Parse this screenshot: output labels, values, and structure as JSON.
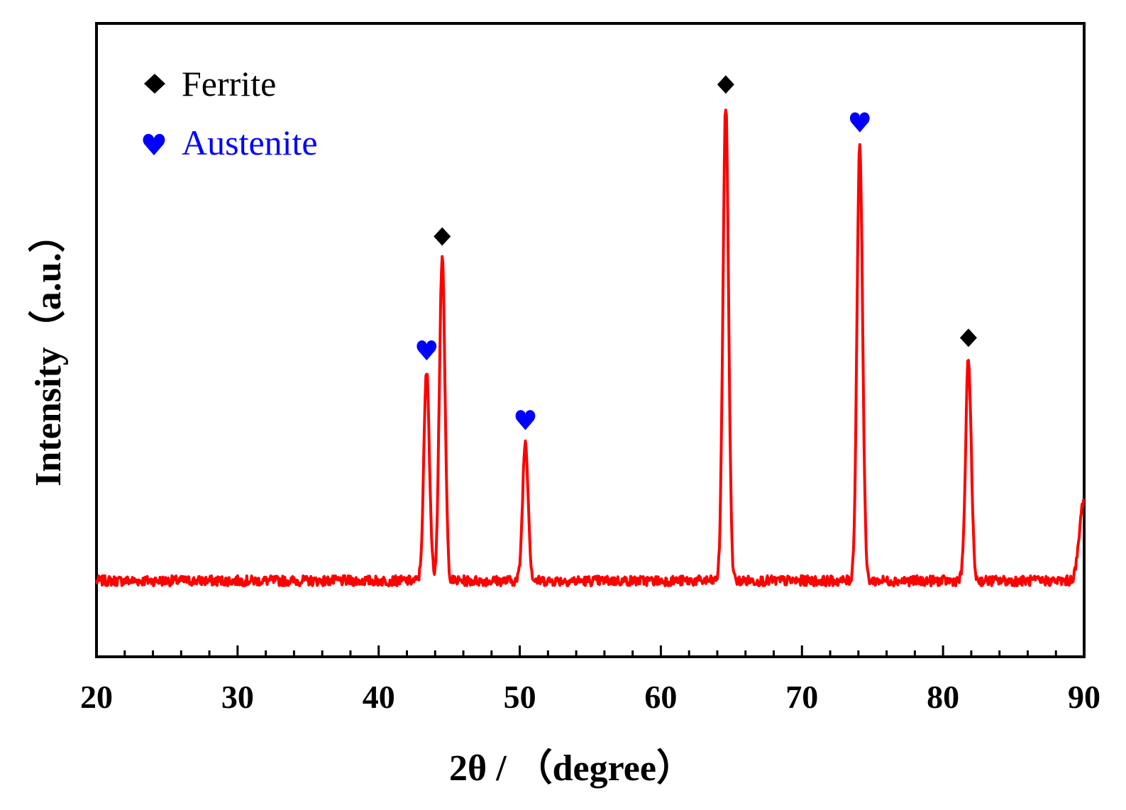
{
  "chart_data": {
    "type": "line",
    "xlabel": "2θ / （degree）",
    "ylabel": "Intensity（a.u.）",
    "xlim": [
      20,
      90
    ],
    "ylim": [
      0,
      100
    ],
    "x_major_ticks": [
      20,
      30,
      40,
      50,
      60,
      70,
      80,
      90
    ],
    "x_minor_step": 2,
    "grid": false,
    "legend": {
      "placement": "top-left",
      "entries": [
        {
          "label": "Ferrite",
          "marker": "diamond",
          "color": "#000000"
        },
        {
          "label": "Austenite",
          "marker": "heart",
          "color": "#0000ff"
        }
      ]
    },
    "series": [
      {
        "color": "#ff0000",
        "baseline": 12,
        "peaks": [
          {
            "x": 43.4,
            "y": 45,
            "phase": "Austenite"
          },
          {
            "x": 44.5,
            "y": 63,
            "phase": "Ferrite"
          },
          {
            "x": 50.4,
            "y": 34,
            "phase": "Austenite"
          },
          {
            "x": 64.6,
            "y": 87,
            "phase": "Ferrite"
          },
          {
            "x": 74.1,
            "y": 81,
            "phase": "Austenite"
          },
          {
            "x": 81.8,
            "y": 47,
            "phase": "Ferrite"
          },
          {
            "x": 90.0,
            "y": 25
          }
        ]
      }
    ],
    "annotations": [
      {
        "x": 43.4,
        "y": 45,
        "marker": "heart",
        "color": "#0000ff"
      },
      {
        "x": 44.5,
        "y": 63,
        "marker": "diamond",
        "color": "#000000"
      },
      {
        "x": 50.4,
        "y": 34,
        "marker": "heart",
        "color": "#0000ff"
      },
      {
        "x": 64.6,
        "y": 87,
        "marker": "diamond",
        "color": "#000000"
      },
      {
        "x": 74.1,
        "y": 81,
        "marker": "heart",
        "color": "#0000ff"
      },
      {
        "x": 81.8,
        "y": 47,
        "marker": "diamond",
        "color": "#000000"
      }
    ]
  }
}
